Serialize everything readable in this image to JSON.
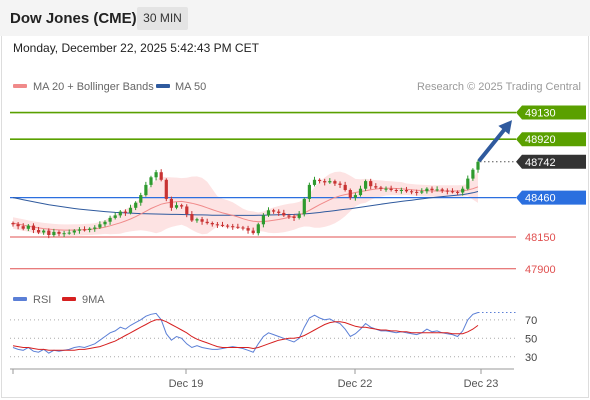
{
  "header": {
    "title": "Dow Jones (CME)",
    "timeframe": "30 MIN",
    "datetime": "Monday, December 22, 2025 5:42:43 PM CET"
  },
  "legend": {
    "items": [
      {
        "label": "MA 20 + Bollinger Bands",
        "color": "#f08a8a"
      },
      {
        "label": "MA 50",
        "color": "#2f5a9e"
      }
    ],
    "copyright": "Research © 2025 Trading Central"
  },
  "colors": {
    "up": "#2e9a2e",
    "down": "#c83232",
    "resistance": "#5aa000",
    "support": "#2b6fdf",
    "support_secondary": "#e05050",
    "bands": "#fde3e3",
    "ma20": "#f08a8a",
    "ma50": "#2f5a9e",
    "arrow": "#2f5a9e",
    "price_tag": "#333333",
    "rsi": "#5b7fd6",
    "rsi_ma": "#d62020"
  },
  "chart_data": [
    {
      "type": "candlestick",
      "title": "Dow Jones (CME)",
      "timeframe": "30 MIN",
      "ylim": [
        47780,
        49260
      ],
      "x_ticks": [
        "Dec 19",
        "Dec 22",
        "Dec 23"
      ],
      "levels": [
        {
          "label": "49130",
          "value": 49130,
          "kind": "resistance"
        },
        {
          "label": "48920",
          "value": 48920,
          "kind": "resistance"
        },
        {
          "label": "48742",
          "value": 48742,
          "kind": "last"
        },
        {
          "label": "48460",
          "value": 48460,
          "kind": "pivot"
        },
        {
          "label": "48150",
          "value": 48150,
          "kind": "support"
        },
        {
          "label": "47900",
          "value": 47900,
          "kind": "support"
        }
      ],
      "projected_target": 49070,
      "series": [
        {
          "name": "Dow Jones (CME)",
          "close": [
            48250,
            48235,
            48215,
            48240,
            48205,
            48185,
            48200,
            48165,
            48190,
            48175,
            48180,
            48185,
            48200,
            48210,
            48205,
            48215,
            48225,
            48250,
            48270,
            48300,
            48320,
            48350,
            48340,
            48380,
            48420,
            48480,
            48560,
            48620,
            48660,
            48600,
            48450,
            48380,
            48400,
            48390,
            48330,
            48280,
            48290,
            48270,
            48260,
            48250,
            48245,
            48240,
            48235,
            48230,
            48225,
            48220,
            48200,
            48180,
            48250,
            48320,
            48360,
            48350,
            48340,
            48320,
            48310,
            48300,
            48330,
            48450,
            48560,
            48600,
            48590,
            48580,
            48590,
            48570,
            48560,
            48520,
            48460,
            48480,
            48530,
            48590,
            48550,
            48540,
            48530,
            48530,
            48520,
            48515,
            48520,
            48510,
            48505,
            48500,
            48510,
            48530,
            48520,
            48525,
            48515,
            48510,
            48505,
            48500,
            48530,
            48610,
            48680,
            48742
          ],
          "annotation": "last 48742"
        },
        {
          "name": "MA 20",
          "values": [
            48260,
            48252,
            48244,
            48236,
            48228,
            48222,
            48216,
            48212,
            48208,
            48206,
            48204,
            48204,
            48205,
            48206,
            48208,
            48210,
            48214,
            48220,
            48228,
            48238,
            48250,
            48262,
            48276,
            48292,
            48310,
            48330,
            48352,
            48374,
            48392,
            48408,
            48418,
            48424,
            48428,
            48430,
            48424,
            48416,
            48406,
            48394,
            48380,
            48366,
            48352,
            48340,
            48330,
            48320,
            48308,
            48294,
            48282,
            48274,
            48270,
            48272,
            48276,
            48282,
            48288,
            48296,
            48304,
            48312,
            48324,
            48340,
            48360,
            48382,
            48404,
            48424,
            48444,
            48460,
            48474,
            48484,
            48492,
            48500,
            48508,
            48514,
            48522,
            48528,
            48532,
            48534,
            48534,
            48532,
            48530,
            48526,
            48522,
            48518,
            48516,
            48514,
            48513,
            48512,
            48512,
            48512,
            48512,
            48512,
            48514,
            48520,
            48530,
            48545
          ]
        },
        {
          "name": "MA 50",
          "values": [
            48460,
            48452,
            48444,
            48436,
            48428,
            48420,
            48412,
            48404,
            48398,
            48392,
            48386,
            48380,
            48374,
            48370,
            48366,
            48362,
            48358,
            48354,
            48350,
            48347,
            48344,
            48342,
            48340,
            48338,
            48336,
            48334,
            48333,
            48332,
            48331,
            48330,
            48329,
            48328,
            48328,
            48327,
            48326,
            48325,
            48324,
            48324,
            48323,
            48322,
            48322,
            48321,
            48321,
            48320,
            48320,
            48320,
            48320,
            48320,
            48321,
            48322,
            48323,
            48324,
            48325,
            48326,
            48327,
            48328,
            48330,
            48332,
            48335,
            48339,
            48343,
            48348,
            48353,
            48358,
            48363,
            48368,
            48373,
            48378,
            48384,
            48390,
            48396,
            48402,
            48408,
            48414,
            48420,
            48425,
            48430,
            48435,
            48440,
            48445,
            48450,
            48455,
            48460,
            48464,
            48468,
            48472,
            48476,
            48480,
            48484,
            48490,
            48498,
            48508
          ]
        }
      ]
    },
    {
      "type": "line",
      "title": "RSI",
      "ylim": [
        20,
        85
      ],
      "y_ticks": [
        70,
        50,
        30
      ],
      "series": [
        {
          "name": "RSI",
          "values": [
            40,
            38,
            37,
            40,
            36,
            35,
            38,
            34,
            37,
            36,
            37,
            38,
            40,
            41,
            40,
            42,
            44,
            48,
            52,
            56,
            58,
            62,
            60,
            64,
            67,
            70,
            74,
            76,
            77,
            70,
            55,
            48,
            52,
            50,
            44,
            40,
            42,
            40,
            39,
            38,
            38,
            39,
            40,
            41,
            40,
            39,
            37,
            35,
            44,
            52,
            56,
            54,
            52,
            50,
            48,
            46,
            50,
            62,
            72,
            75,
            72,
            70,
            71,
            68,
            66,
            60,
            52,
            55,
            60,
            66,
            62,
            60,
            58,
            58,
            57,
            56,
            57,
            56,
            55,
            54,
            56,
            60,
            57,
            58,
            56,
            55,
            54,
            52,
            58,
            70,
            76,
            78
          ]
        },
        {
          "name": "9MA",
          "values": [
            42,
            41,
            40,
            40,
            39,
            38,
            38,
            37,
            37,
            37,
            37,
            37,
            37,
            38,
            38,
            39,
            40,
            41,
            43,
            45,
            47,
            50,
            53,
            56,
            59,
            62,
            65,
            68,
            70,
            70,
            68,
            65,
            62,
            59,
            56,
            52,
            49,
            47,
            45,
            43,
            41,
            40,
            40,
            40,
            40,
            40,
            40,
            39,
            40,
            42,
            44,
            46,
            48,
            49,
            50,
            50,
            51,
            53,
            56,
            59,
            62,
            65,
            67,
            68,
            68,
            67,
            65,
            63,
            62,
            62,
            61,
            60,
            59,
            59,
            58,
            58,
            57,
            57,
            56,
            56,
            56,
            56,
            56,
            56,
            56,
            56,
            55,
            55,
            55,
            57,
            60,
            64
          ]
        }
      ]
    }
  ]
}
